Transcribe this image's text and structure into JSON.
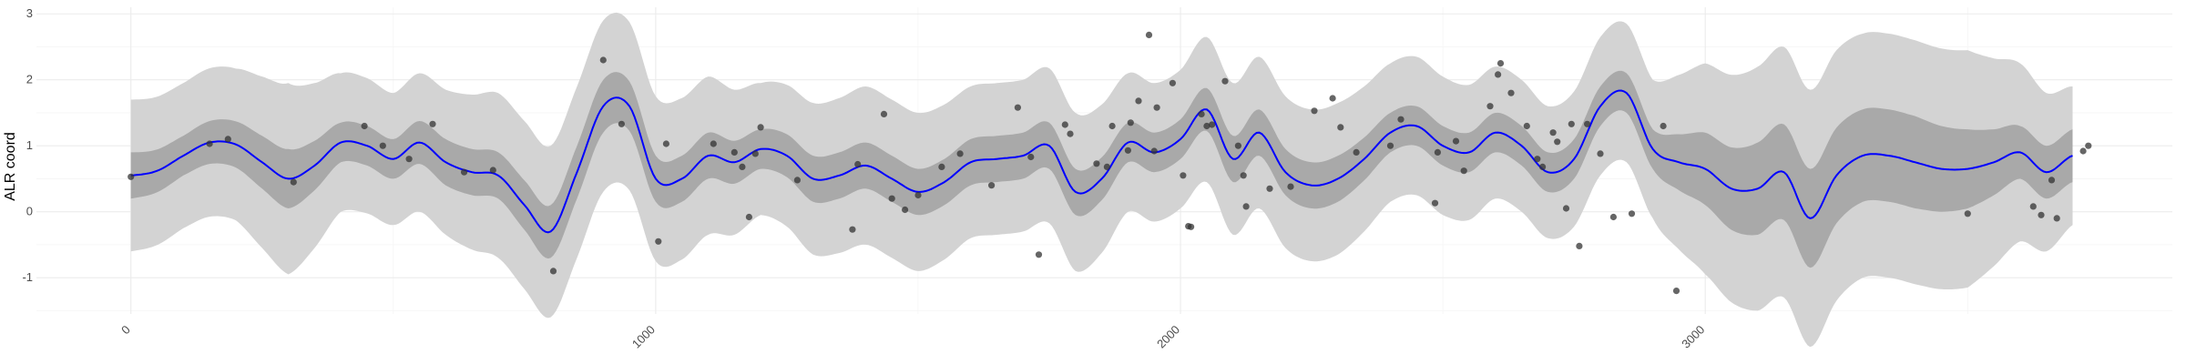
{
  "chart_data": {
    "type": "line",
    "title": "",
    "xlabel": "",
    "ylabel": "ALR coord",
    "xlim": [
      -180,
      3890
    ],
    "ylim": [
      -1.55,
      3.1
    ],
    "x_ticks": [
      0,
      1000,
      2000,
      3000
    ],
    "x_tick_labels": [
      "0",
      "1000",
      "2000",
      "3000"
    ],
    "y_ticks": [
      -1,
      0,
      1,
      2,
      3
    ],
    "y_tick_labels": [
      "-1",
      "0",
      "1",
      "2",
      "3"
    ],
    "grid": true,
    "legend": "none",
    "colors": {
      "mean_line": "#0000ff",
      "inner_band": "#a9a9a9",
      "outer_band": "#d3d3d3",
      "points": "#333333",
      "grid_major": "#ebebeb",
      "grid_minor": "#f5f5f5"
    },
    "series": [
      {
        "role": "mean",
        "x": [
          0,
          50,
          100,
          150,
          200,
          250,
          300,
          350,
          400,
          450,
          500,
          550,
          600,
          650,
          700,
          750,
          800,
          850,
          900,
          950,
          1000,
          1050,
          1100,
          1150,
          1200,
          1250,
          1300,
          1350,
          1400,
          1450,
          1500,
          1550,
          1600,
          1650,
          1700,
          1750,
          1800,
          1850,
          1900,
          1950,
          2000,
          2050,
          2100,
          2150,
          2200,
          2250,
          2300,
          2350,
          2400,
          2450,
          2500,
          2550,
          2600,
          2650,
          2700,
          2750,
          2800,
          2850,
          2900,
          2950,
          3000,
          3050,
          3100,
          3150,
          3200,
          3250,
          3300,
          3350,
          3400,
          3450,
          3500,
          3550,
          3600,
          3650,
          3700
        ],
        "y": [
          0.55,
          0.62,
          0.85,
          1.05,
          1.02,
          0.75,
          0.5,
          0.7,
          1.05,
          1.0,
          0.8,
          1.05,
          0.75,
          0.6,
          0.55,
          0.1,
          -0.3,
          0.6,
          1.6,
          1.6,
          0.5,
          0.5,
          0.85,
          0.75,
          0.95,
          0.85,
          0.5,
          0.55,
          0.7,
          0.5,
          0.3,
          0.45,
          0.75,
          0.8,
          0.85,
          1.0,
          0.3,
          0.5,
          1.05,
          0.9,
          1.1,
          1.55,
          0.8,
          1.2,
          0.6,
          0.4,
          0.5,
          0.8,
          1.2,
          1.3,
          1.0,
          0.9,
          1.2,
          1.0,
          0.6,
          0.8,
          1.6,
          1.8,
          0.95,
          0.75,
          0.65,
          0.35,
          0.35,
          0.6,
          -0.1,
          0.55,
          0.85,
          0.85,
          0.75,
          0.65,
          0.65,
          0.75,
          0.9,
          0.6,
          0.85
        ]
      },
      {
        "role": "inner-band-halfwidth",
        "x": [
          0,
          100,
          200,
          300,
          400,
          500,
          600,
          700,
          800,
          900,
          1000,
          1100,
          1200,
          1300,
          1400,
          1500,
          1600,
          1700,
          1800,
          1900,
          2000,
          2100,
          2200,
          2300,
          2400,
          2500,
          2600,
          2700,
          2800,
          2900,
          3000,
          3100,
          3200,
          3300,
          3400,
          3500,
          3600,
          3700
        ],
        "y": [
          0.35,
          0.3,
          0.35,
          0.45,
          0.3,
          0.3,
          0.35,
          0.35,
          0.4,
          0.4,
          0.35,
          0.35,
          0.3,
          0.35,
          0.35,
          0.35,
          0.35,
          0.35,
          0.35,
          0.3,
          0.3,
          0.35,
          0.35,
          0.35,
          0.3,
          0.3,
          0.3,
          0.3,
          0.3,
          0.3,
          0.55,
          0.7,
          0.75,
          0.7,
          0.7,
          0.6,
          0.4,
          0.4
        ]
      },
      {
        "role": "outer-band-halfwidth",
        "x": [
          0,
          100,
          200,
          300,
          400,
          500,
          600,
          700,
          800,
          900,
          1000,
          1100,
          1200,
          1300,
          1400,
          1500,
          1600,
          1700,
          1800,
          1900,
          2000,
          2100,
          2200,
          2300,
          2400,
          2500,
          2600,
          2700,
          2800,
          2900,
          3000,
          3100,
          3200,
          3300,
          3400,
          3500,
          3600,
          3700
        ],
        "y": [
          1.15,
          1.1,
          1.15,
          1.45,
          1.05,
          1.0,
          1.1,
          1.25,
          1.3,
          1.3,
          1.25,
          1.2,
          1.0,
          1.15,
          1.2,
          1.2,
          1.15,
          1.15,
          1.2,
          1.05,
          1.05,
          1.15,
          1.15,
          1.15,
          1.05,
          1.05,
          1.0,
          1.0,
          1.05,
          1.05,
          1.6,
          1.85,
          1.95,
          1.85,
          1.85,
          1.8,
          1.35,
          1.05
        ]
      }
    ],
    "points": [
      [
        0,
        0.53
      ],
      [
        150,
        1.03
      ],
      [
        185,
        1.1
      ],
      [
        310,
        0.45
      ],
      [
        445,
        1.3
      ],
      [
        480,
        1.0
      ],
      [
        530,
        0.8
      ],
      [
        575,
        1.33
      ],
      [
        635,
        0.6
      ],
      [
        690,
        0.63
      ],
      [
        805,
        -0.9
      ],
      [
        900,
        2.3
      ],
      [
        935,
        1.33
      ],
      [
        1005,
        -0.45
      ],
      [
        1020,
        1.03
      ],
      [
        1110,
        1.03
      ],
      [
        1150,
        0.9
      ],
      [
        1165,
        0.68
      ],
      [
        1178,
        -0.08
      ],
      [
        1190,
        0.88
      ],
      [
        1200,
        1.28
      ],
      [
        1270,
        0.48
      ],
      [
        1375,
        -0.27
      ],
      [
        1385,
        0.72
      ],
      [
        1435,
        1.48
      ],
      [
        1450,
        0.2
      ],
      [
        1475,
        0.03
      ],
      [
        1500,
        0.25
      ],
      [
        1545,
        0.68
      ],
      [
        1580,
        0.88
      ],
      [
        1640,
        0.4
      ],
      [
        1690,
        1.58
      ],
      [
        1715,
        0.83
      ],
      [
        1730,
        -0.65
      ],
      [
        1780,
        1.32
      ],
      [
        1790,
        1.18
      ],
      [
        1840,
        0.73
      ],
      [
        1860,
        0.68
      ],
      [
        1870,
        1.3
      ],
      [
        1900,
        0.93
      ],
      [
        1905,
        1.35
      ],
      [
        1920,
        1.68
      ],
      [
        1940,
        2.68
      ],
      [
        1950,
        0.92
      ],
      [
        1955,
        1.58
      ],
      [
        1985,
        1.95
      ],
      [
        2005,
        0.55
      ],
      [
        2015,
        -0.22
      ],
      [
        2020,
        -0.23
      ],
      [
        2040,
        1.48
      ],
      [
        2050,
        1.3
      ],
      [
        2060,
        1.32
      ],
      [
        2085,
        1.98
      ],
      [
        2110,
        1.0
      ],
      [
        2120,
        0.55
      ],
      [
        2125,
        0.08
      ],
      [
        2170,
        0.35
      ],
      [
        2210,
        0.38
      ],
      [
        2255,
        1.53
      ],
      [
        2290,
        1.72
      ],
      [
        2305,
        1.28
      ],
      [
        2335,
        0.9
      ],
      [
        2400,
        1.0
      ],
      [
        2420,
        1.4
      ],
      [
        2485,
        0.13
      ],
      [
        2490,
        0.9
      ],
      [
        2525,
        1.07
      ],
      [
        2540,
        0.62
      ],
      [
        2590,
        1.6
      ],
      [
        2605,
        2.08
      ],
      [
        2610,
        2.25
      ],
      [
        2630,
        1.8
      ],
      [
        2660,
        1.3
      ],
      [
        2680,
        0.8
      ],
      [
        2690,
        0.68
      ],
      [
        2710,
        1.2
      ],
      [
        2718,
        1.06
      ],
      [
        2735,
        0.05
      ],
      [
        2745,
        1.33
      ],
      [
        2760,
        -0.52
      ],
      [
        2775,
        1.33
      ],
      [
        2800,
        0.88
      ],
      [
        2825,
        -0.08
      ],
      [
        2860,
        -0.03
      ],
      [
        2920,
        1.3
      ],
      [
        2945,
        -1.2
      ],
      [
        3500,
        -0.03
      ],
      [
        3625,
        0.08
      ],
      [
        3640,
        -0.05
      ],
      [
        3660,
        0.48
      ],
      [
        3670,
        -0.1
      ],
      [
        3720,
        0.92
      ],
      [
        3730,
        1.0
      ]
    ]
  }
}
